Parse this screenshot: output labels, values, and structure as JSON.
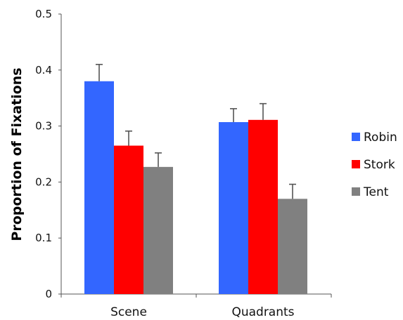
{
  "chart_data": {
    "type": "bar",
    "title": "",
    "xlabel": "",
    "ylabel": "Proportion of Fixations",
    "ylim": [
      0,
      0.5
    ],
    "yticks": [
      0,
      0.1,
      0.2,
      0.3,
      0.4,
      0.5
    ],
    "ytick_labels": [
      "0",
      "0.1",
      "0.2",
      "0.3",
      "0.4",
      "0.5"
    ],
    "categories": [
      "Scene",
      "Quadrants"
    ],
    "series": [
      {
        "name": "Robin",
        "color": "#3366ff",
        "values": [
          0.38,
          0.307
        ],
        "error": [
          0.03,
          0.024
        ]
      },
      {
        "name": "Stork",
        "color": "#ff0000",
        "values": [
          0.265,
          0.311
        ],
        "error": [
          0.026,
          0.029
        ]
      },
      {
        "name": "Tent",
        "color": "#808080",
        "values": [
          0.227,
          0.17
        ],
        "error": [
          0.025,
          0.026
        ]
      }
    ],
    "grid": false,
    "legend_position": "right",
    "error_bars": "upper only"
  }
}
